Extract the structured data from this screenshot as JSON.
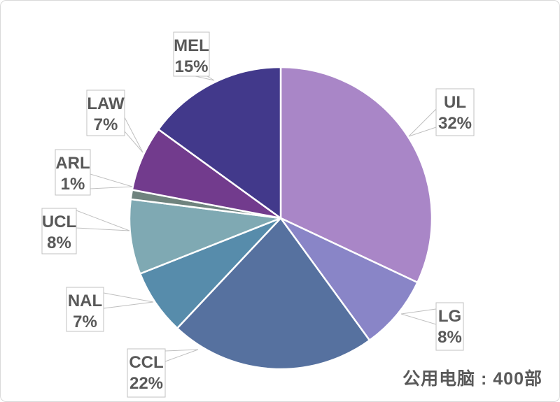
{
  "chart_data": {
    "type": "pie",
    "title": "",
    "legend": "none",
    "start_angle_deg": 0,
    "direction": "clockwise",
    "value_suffix": "%",
    "series": [
      {
        "label": "UL",
        "value": 32,
        "value_label": "32%",
        "color": "#a986c7"
      },
      {
        "label": "LG",
        "value": 8,
        "value_label": "8%",
        "color": "#8985c7"
      },
      {
        "label": "CCL",
        "value": 22,
        "value_label": "22%",
        "color": "#56719f"
      },
      {
        "label": "NAL",
        "value": 7,
        "value_label": "7%",
        "color": "#578cab"
      },
      {
        "label": "UCL",
        "value": 8,
        "value_label": "8%",
        "color": "#7fa9b3"
      },
      {
        "label": "ARL",
        "value": 1,
        "value_label": "1%",
        "color": "#6f837e"
      },
      {
        "label": "LAW",
        "value": 7,
        "value_label": "7%",
        "color": "#723b8d"
      },
      {
        "label": "MEL",
        "value": 15,
        "value_label": "15%",
        "color": "#42398b"
      }
    ],
    "labels_style": "callout-boxes"
  },
  "footnote": {
    "text": "公用电脑 : 400部"
  },
  "styles": {
    "background": "#ffffff",
    "frame_border": "#d9d9d9",
    "slice_gap_color": "#ffffff",
    "callout_border": "#c0c0c0",
    "callout_fill": "#ffffff",
    "label_text_color": "#595959"
  }
}
